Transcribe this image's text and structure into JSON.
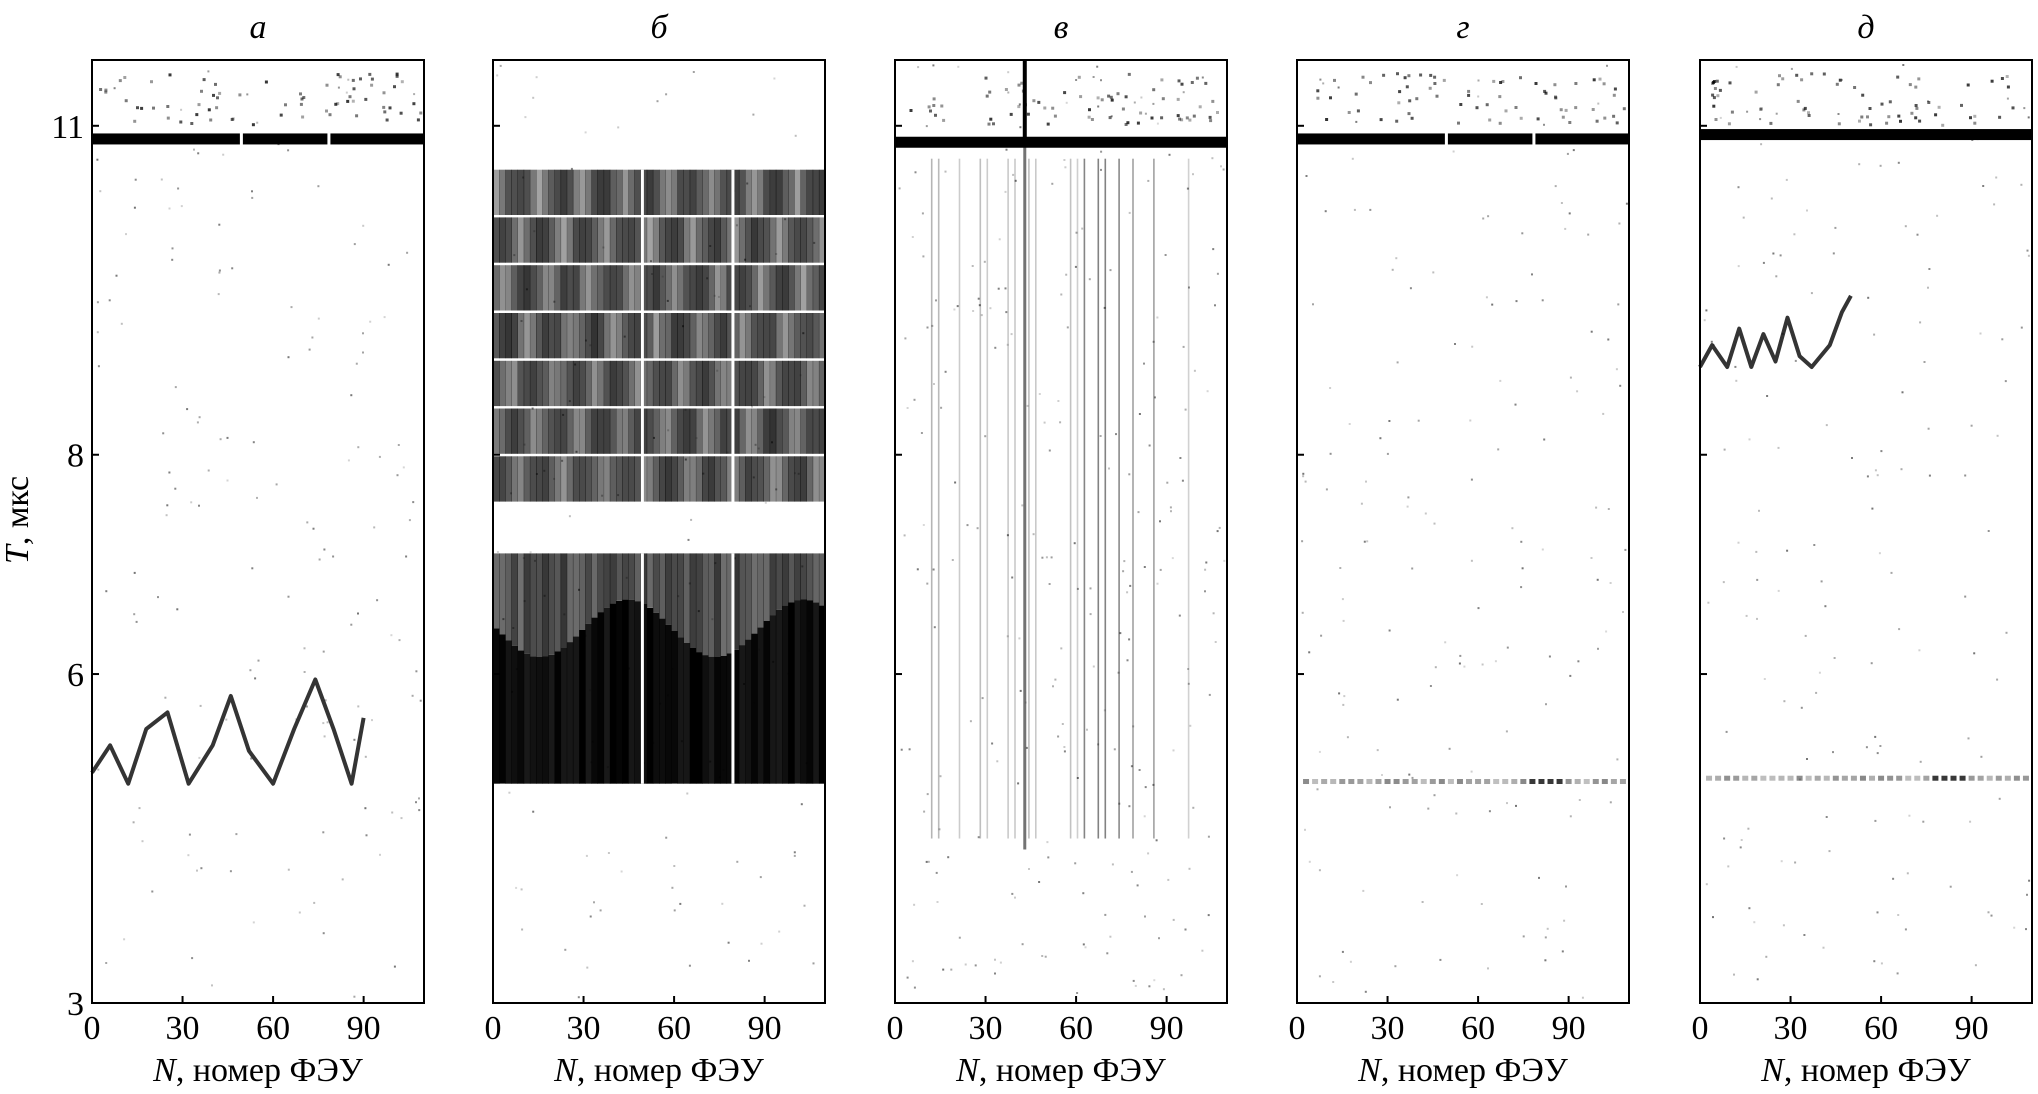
{
  "figure": {
    "ylabel_var": "T",
    "ylabel_unit": ", мкс",
    "yticks": [
      3,
      6,
      8,
      11
    ],
    "ylim": [
      3,
      11.6
    ],
    "xticks": [
      0,
      30,
      60,
      90
    ],
    "xlim": [
      0,
      110
    ],
    "xlabel_var": "N",
    "xlabel_rest": ", номер ФЭУ"
  },
  "chart_data": [
    {
      "type": "heatmap",
      "title": "а",
      "features": [
        {
          "kind": "horizontal band",
          "t": 10.88
        },
        {
          "kind": "zigzag trace",
          "x": [
            0,
            6,
            12,
            18,
            25,
            32,
            40,
            46,
            52,
            60,
            67,
            74,
            80,
            86,
            90
          ],
          "t": [
            5.1,
            5.35,
            5.0,
            5.5,
            5.65,
            5.0,
            5.35,
            5.8,
            5.3,
            5.0,
            5.5,
            5.95,
            5.5,
            5.0,
            5.6
          ]
        }
      ]
    },
    {
      "type": "heatmap",
      "title": "б",
      "features": [
        {
          "kind": "filled region",
          "t_from": 7.55,
          "t_to": 10.6
        },
        {
          "kind": "filled region",
          "t_from": 5.0,
          "t_to": 7.1
        }
      ]
    },
    {
      "type": "heatmap",
      "title": "в",
      "features": [
        {
          "kind": "horizontal band",
          "t": 10.85
        },
        {
          "kind": "vertical streak",
          "x": 43,
          "t_from": 4.4,
          "t_to": 11.6
        }
      ]
    },
    {
      "type": "heatmap",
      "title": "г",
      "features": [
        {
          "kind": "horizontal band",
          "t": 10.88
        },
        {
          "kind": "horizontal band",
          "t": 5.02
        }
      ]
    },
    {
      "type": "heatmap",
      "title": "д",
      "features": [
        {
          "kind": "horizontal band",
          "t": 10.92
        },
        {
          "kind": "zigzag trace",
          "x": [
            0,
            4,
            9,
            13,
            17,
            21,
            25,
            29,
            33,
            37,
            43,
            47,
            50
          ],
          "t": [
            8.8,
            9.0,
            8.8,
            9.15,
            8.8,
            9.1,
            8.85,
            9.25,
            8.9,
            8.8,
            9.0,
            9.3,
            9.45
          ]
        },
        {
          "kind": "horizontal band",
          "t": 5.05
        }
      ]
    }
  ]
}
